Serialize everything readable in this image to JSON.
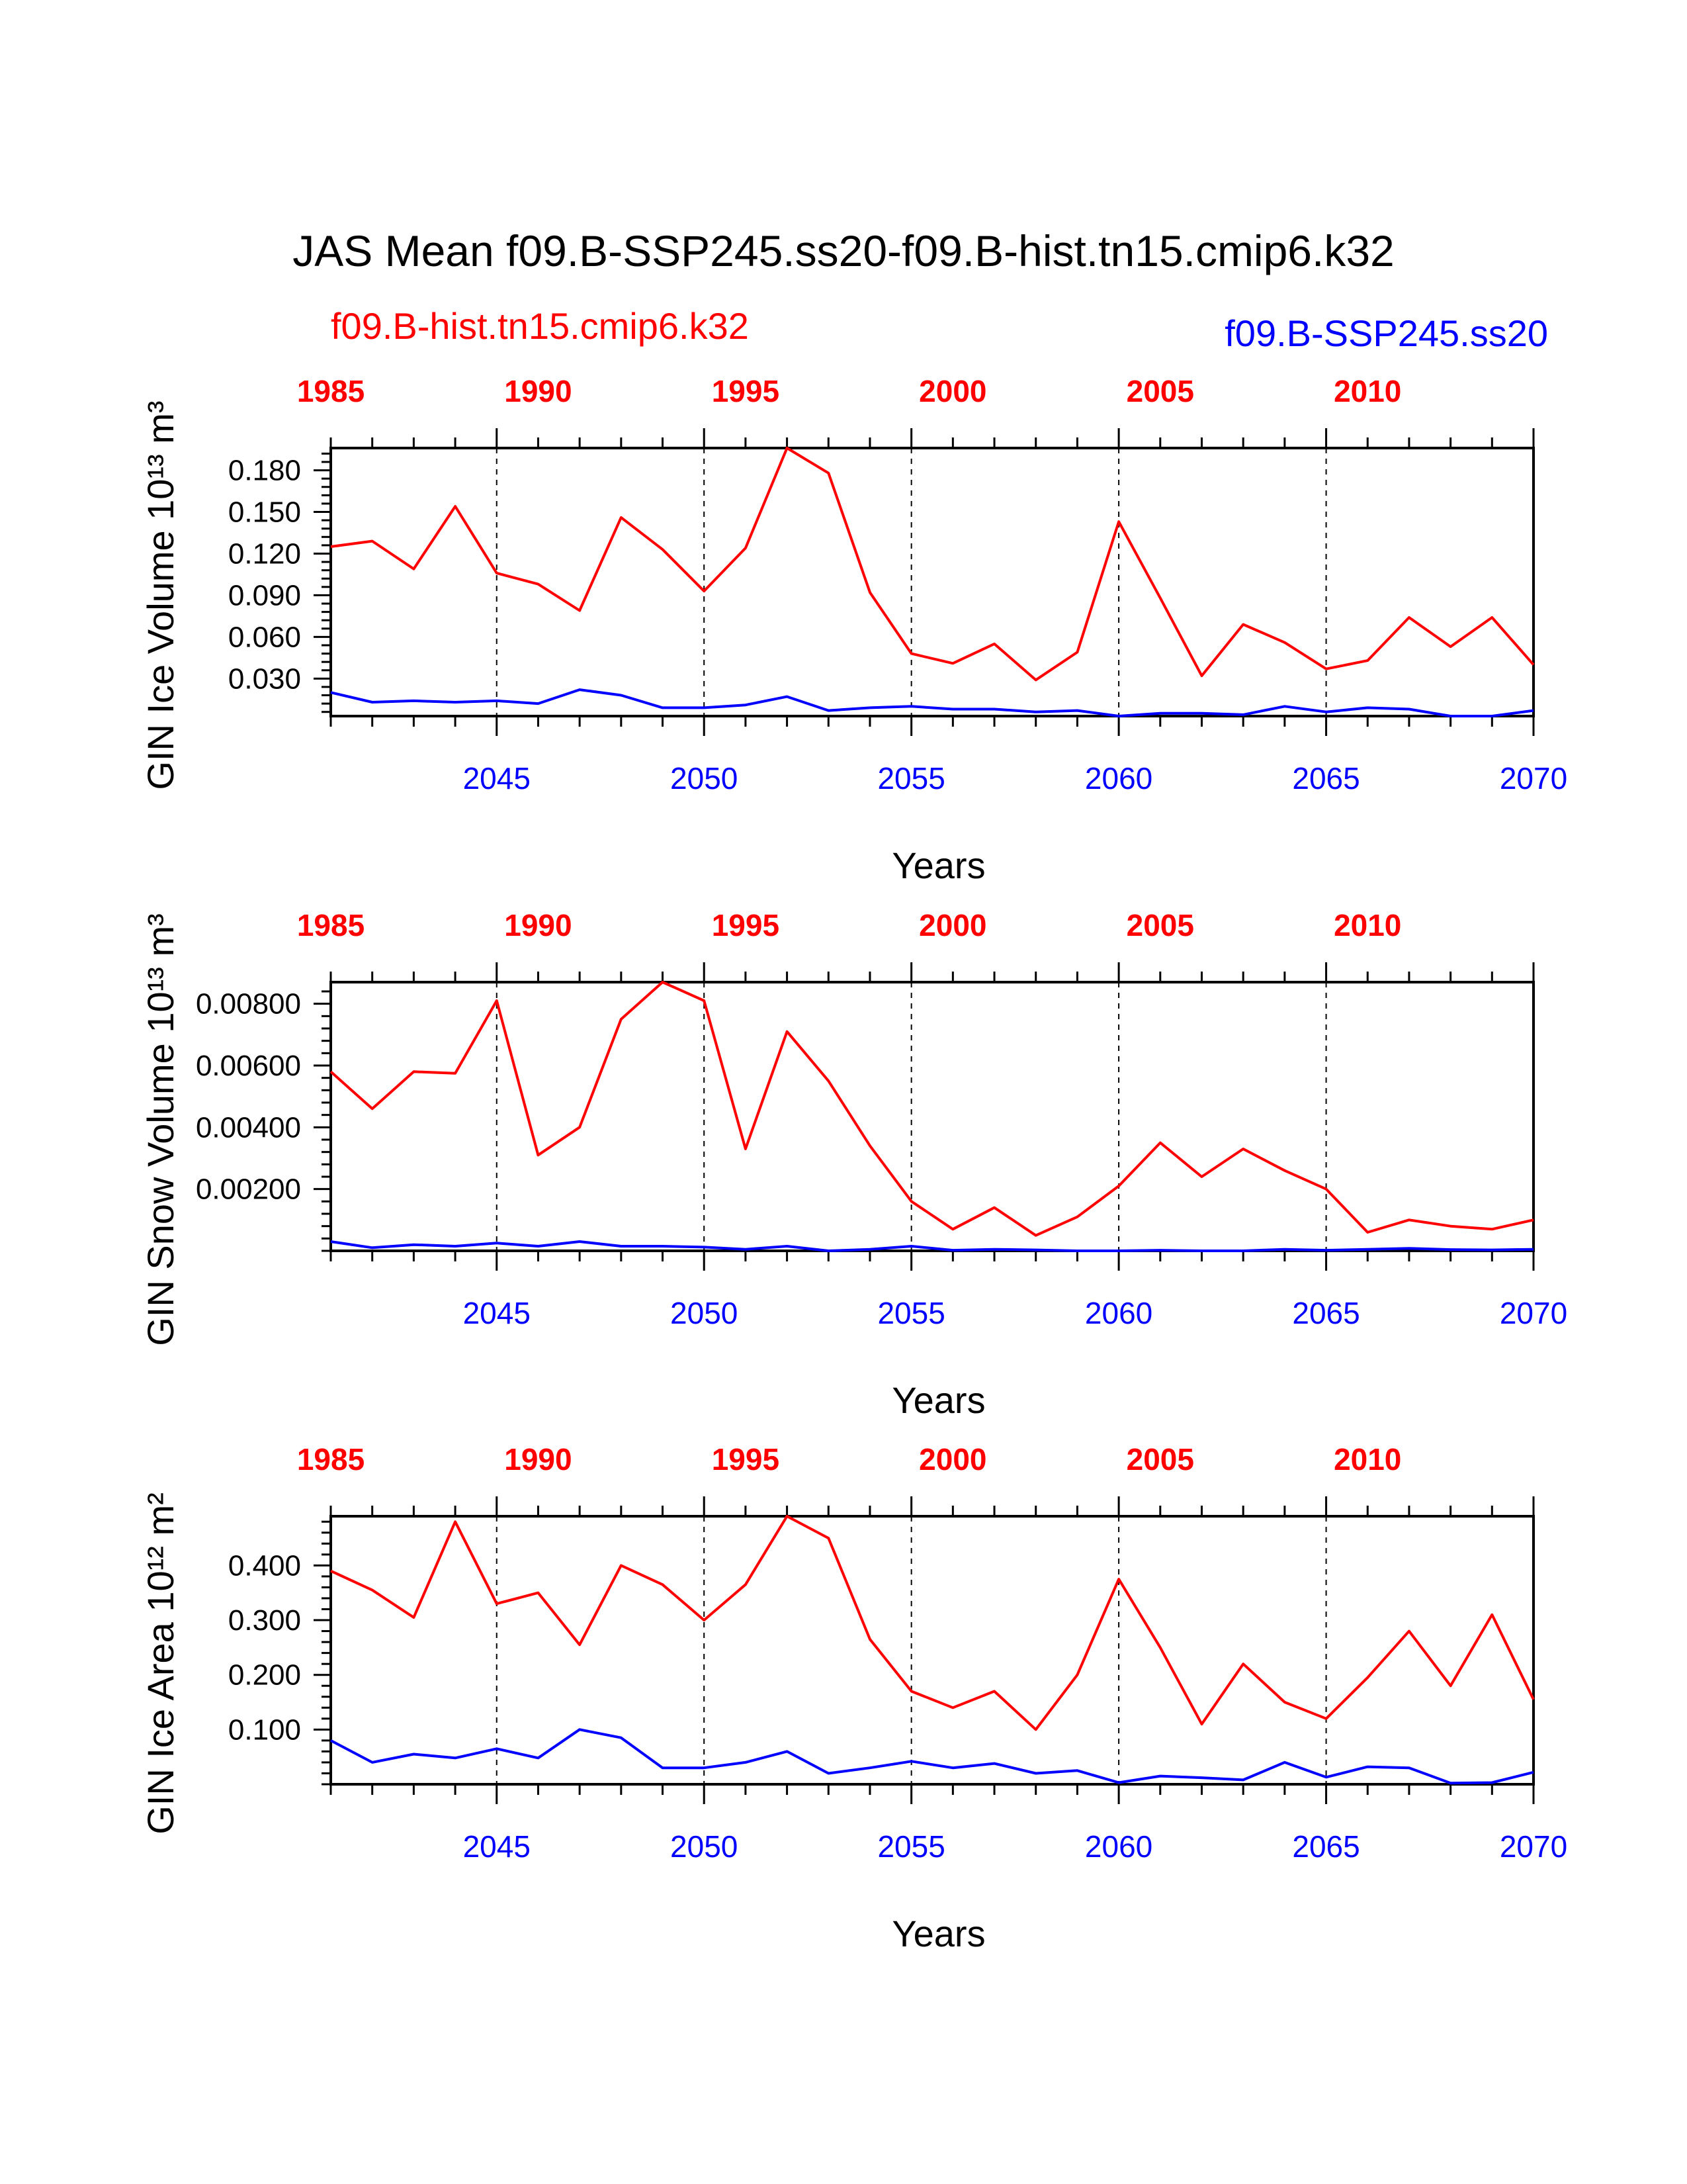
{
  "figure": {
    "title": "JAS Mean f09.B-SSP245.ss20-f09.B-hist.tn15.cmip6.k32",
    "left_subtitle": "f09.B-hist.tn15.cmip6.k32",
    "right_subtitle": "f09.B-SSP245.ss20"
  },
  "colors": {
    "historical": "#ff0000",
    "ssp245": "#0000ff",
    "text": "#000000"
  },
  "chart_data": [
    {
      "type": "line",
      "ylabel": "GIN Ice Volume 10¹³ m³",
      "xlabel": "Years",
      "ylim": [
        0.003,
        0.196
      ],
      "yticks": [
        0.03,
        0.06,
        0.09,
        0.12,
        0.15,
        0.18
      ],
      "ytick_labels": [
        "0.030",
        "0.060",
        "0.090",
        "0.120",
        "0.150",
        "0.180"
      ],
      "x_bottom_ticks": [
        2045,
        2050,
        2055,
        2060,
        2065,
        2070
      ],
      "x_top_ticks": [
        "1985",
        "1990",
        "1995",
        "2000",
        "2005",
        "2010"
      ],
      "xlim": [
        2041,
        2070
      ],
      "grid": "vertical dashed at labeled years",
      "series": [
        {
          "name": "f09.B-hist.tn15.cmip6.k32",
          "x": [
            2041,
            2042,
            2043,
            2044,
            2045,
            2046,
            2047,
            2048,
            2049,
            2050,
            2051,
            2052,
            2053,
            2054,
            2055,
            2056,
            2057,
            2058,
            2059,
            2060,
            2061,
            2062,
            2063,
            2064,
            2065,
            2066,
            2067,
            2068,
            2069,
            2070
          ],
          "values": [
            0.125,
            0.129,
            0.109,
            0.154,
            0.106,
            0.098,
            0.079,
            0.146,
            0.123,
            0.093,
            0.124,
            0.196,
            0.178,
            0.092,
            0.048,
            0.041,
            0.055,
            0.029,
            0.049,
            0.143,
            0.088,
            0.032,
            0.069,
            0.056,
            0.037,
            0.043,
            0.074,
            0.053,
            0.074,
            0.04
          ]
        },
        {
          "name": "f09.B-SSP245.ss20",
          "x": [
            2041,
            2042,
            2043,
            2044,
            2045,
            2046,
            2047,
            2048,
            2049,
            2050,
            2051,
            2052,
            2053,
            2054,
            2055,
            2056,
            2057,
            2058,
            2059,
            2060,
            2061,
            2062,
            2063,
            2064,
            2065,
            2066,
            2067,
            2068,
            2069,
            2070
          ],
          "values": [
            0.02,
            0.013,
            0.014,
            0.013,
            0.014,
            0.012,
            0.022,
            0.018,
            0.009,
            0.009,
            0.011,
            0.017,
            0.007,
            0.009,
            0.01,
            0.008,
            0.008,
            0.006,
            0.007,
            0.003,
            0.005,
            0.005,
            0.004,
            0.01,
            0.006,
            0.009,
            0.008,
            0.003,
            0.003,
            0.007
          ]
        }
      ]
    },
    {
      "type": "line",
      "ylabel": "GIN Snow Volume 10¹³ m³",
      "xlabel": "Years",
      "ylim": [
        0.0,
        0.0087
      ],
      "yticks": [
        0.002,
        0.004,
        0.006,
        0.008
      ],
      "ytick_labels": [
        "0.00200",
        "0.00400",
        "0.00600",
        "0.00800"
      ],
      "x_bottom_ticks": [
        2045,
        2050,
        2055,
        2060,
        2065,
        2070
      ],
      "x_top_ticks": [
        "1985",
        "1990",
        "1995",
        "2000",
        "2005",
        "2010"
      ],
      "xlim": [
        2041,
        2070
      ],
      "grid": "vertical dashed at labeled years",
      "series": [
        {
          "name": "f09.B-hist.tn15.cmip6.k32",
          "x": [
            2041,
            2042,
            2043,
            2044,
            2045,
            2046,
            2047,
            2048,
            2049,
            2050,
            2051,
            2052,
            2053,
            2054,
            2055,
            2056,
            2057,
            2058,
            2059,
            2060,
            2061,
            2062,
            2063,
            2064,
            2065,
            2066,
            2067,
            2068,
            2069,
            2070
          ],
          "values": [
            0.0058,
            0.0046,
            0.0058,
            0.00575,
            0.0081,
            0.0031,
            0.004,
            0.0075,
            0.0087,
            0.0081,
            0.0033,
            0.0071,
            0.0055,
            0.0034,
            0.0016,
            0.0007,
            0.0014,
            0.0005,
            0.0011,
            0.0021,
            0.0035,
            0.0024,
            0.0033,
            0.0026,
            0.002,
            0.0006,
            0.001,
            0.0008,
            0.0007,
            0.001
          ]
        },
        {
          "name": "f09.B-SSP245.ss20",
          "x": [
            2041,
            2042,
            2043,
            2044,
            2045,
            2046,
            2047,
            2048,
            2049,
            2050,
            2051,
            2052,
            2053,
            2054,
            2055,
            2056,
            2057,
            2058,
            2059,
            2060,
            2061,
            2062,
            2063,
            2064,
            2065,
            2066,
            2067,
            2068,
            2069,
            2070
          ],
          "values": [
            0.0003,
            0.0001,
            0.0002,
            0.00015,
            0.00025,
            0.00015,
            0.0003,
            0.00015,
            0.00015,
            0.00012,
            5e-05,
            0.00015,
            0.0,
            5e-05,
            0.00015,
            2e-05,
            5e-05,
            3e-05,
            0.0,
            0.0,
            2e-05,
            0.0,
            0.0,
            5e-05,
            2e-05,
            5e-05,
            8e-05,
            4e-05,
            3e-05,
            5e-05
          ]
        }
      ]
    },
    {
      "type": "line",
      "ylabel": "GIN Ice Area 10¹² m²",
      "xlabel": "Years",
      "ylim": [
        0.0,
        0.49
      ],
      "yticks": [
        0.1,
        0.2,
        0.3,
        0.4
      ],
      "ytick_labels": [
        "0.100",
        "0.200",
        "0.300",
        "0.400"
      ],
      "x_bottom_ticks": [
        2045,
        2050,
        2055,
        2060,
        2065,
        2070
      ],
      "x_top_ticks": [
        "1985",
        "1990",
        "1995",
        "2000",
        "2005",
        "2010"
      ],
      "xlim": [
        2041,
        2070
      ],
      "grid": "vertical dashed at labeled years",
      "series": [
        {
          "name": "f09.B-hist.tn15.cmip6.k32",
          "x": [
            2041,
            2042,
            2043,
            2044,
            2045,
            2046,
            2047,
            2048,
            2049,
            2050,
            2051,
            2052,
            2053,
            2054,
            2055,
            2056,
            2057,
            2058,
            2059,
            2060,
            2061,
            2062,
            2063,
            2064,
            2065,
            2066,
            2067,
            2068,
            2069,
            2070
          ],
          "values": [
            0.39,
            0.355,
            0.305,
            0.48,
            0.33,
            0.35,
            0.255,
            0.4,
            0.365,
            0.3,
            0.365,
            0.49,
            0.45,
            0.265,
            0.17,
            0.14,
            0.17,
            0.1,
            0.2,
            0.375,
            0.25,
            0.11,
            0.22,
            0.15,
            0.12,
            0.195,
            0.28,
            0.18,
            0.31,
            0.155
          ]
        },
        {
          "name": "f09.B-SSP245.ss20",
          "x": [
            2041,
            2042,
            2043,
            2044,
            2045,
            2046,
            2047,
            2048,
            2049,
            2050,
            2051,
            2052,
            2053,
            2054,
            2055,
            2056,
            2057,
            2058,
            2059,
            2060,
            2061,
            2062,
            2063,
            2064,
            2065,
            2066,
            2067,
            2068,
            2069,
            2070
          ],
          "values": [
            0.08,
            0.04,
            0.055,
            0.048,
            0.065,
            0.048,
            0.1,
            0.085,
            0.03,
            0.03,
            0.04,
            0.06,
            0.02,
            0.03,
            0.042,
            0.03,
            0.038,
            0.02,
            0.025,
            0.003,
            0.015,
            0.012,
            0.008,
            0.04,
            0.013,
            0.032,
            0.03,
            0.002,
            0.003,
            0.022
          ]
        }
      ]
    }
  ]
}
